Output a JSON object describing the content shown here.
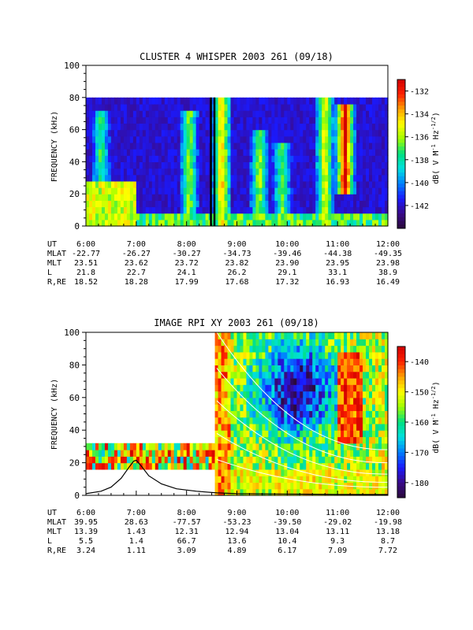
{
  "chart_data": [
    {
      "type": "heatmap",
      "title": "CLUSTER 4 WHISPER 2003 261 (09/18)",
      "ylabel": "FREQUENCY (kHz)",
      "ylim": [
        0,
        100
      ],
      "yticks": [
        "0",
        "20",
        "40",
        "60",
        "80",
        "100"
      ],
      "xlim_hours": [
        6,
        12
      ],
      "xticks": [
        "6:00",
        "7:00",
        "8:00",
        "9:00",
        "10:00",
        "11:00",
        "12:00"
      ],
      "data_max_frequency_khz": 80,
      "colorbar": {
        "label": "dB( V M⁻¹ Hz⁻¹ᐟ²)",
        "label_parts": [
          "dB( V M",
          "-1",
          " Hz",
          "-1/2",
          ")"
        ],
        "range": [
          -144,
          -131
        ],
        "ticks": [
          -132,
          -134,
          -136,
          -138,
          -140,
          -142
        ],
        "tick_labels": [
          "-132",
          "-134",
          "-136",
          "-138",
          "-140",
          "-142"
        ]
      },
      "colormap": [
        "#2a0a3a",
        "#3a0a8a",
        "#1a1aff",
        "#0080ff",
        "#00e0e0",
        "#00e080",
        "#a0ff00",
        "#ffff00",
        "#ffa000",
        "#ff2000",
        "#d00000"
      ],
      "features": [
        {
          "hour": 6.3,
          "f_lo": 0,
          "f_hi": 70,
          "level": 0.45
        },
        {
          "hour": 8.05,
          "f_lo": 0,
          "f_hi": 70,
          "level": 0.55
        },
        {
          "hour": 8.7,
          "f_lo": 0,
          "f_hi": 80,
          "level": 0.7
        },
        {
          "hour": 9.45,
          "f_lo": 0,
          "f_hi": 60,
          "level": 0.55
        },
        {
          "hour": 9.9,
          "f_lo": 0,
          "f_hi": 50,
          "level": 0.5
        },
        {
          "hour": 10.75,
          "f_lo": 0,
          "f_hi": 80,
          "level": 0.65
        },
        {
          "hour": 11.15,
          "f_lo": 20,
          "f_hi": 75,
          "level": 0.95
        }
      ],
      "ephemeris": {
        "rows": [
          {
            "label": "UT",
            "values": [
              "6:00",
              "7:00",
              "8:00",
              "9:00",
              "10:00",
              "11:00",
              "12:00"
            ]
          },
          {
            "label": "MLAT",
            "values": [
              "-22.77",
              "-26.27",
              "-30.27",
              "-34.73",
              "-39.46",
              "-44.38",
              "-49.35"
            ]
          },
          {
            "label": "MLT",
            "values": [
              "23.51",
              "23.62",
              "23.72",
              "23.82",
              "23.90",
              "23.95",
              "23.98"
            ]
          },
          {
            "label": "L",
            "values": [
              "21.8",
              "22.7",
              "24.1",
              "26.2",
              "29.1",
              "33.1",
              "38.9"
            ]
          },
          {
            "label": "R,RE",
            "values": [
              "18.52",
              "18.28",
              "17.99",
              "17.68",
              "17.32",
              "16.93",
              "16.49"
            ]
          }
        ]
      }
    },
    {
      "type": "heatmap",
      "title": "IMAGE RPI XY 2003 261 (09/18)",
      "ylabel": "FREQUENCY (kHz)",
      "ylim": [
        0,
        100
      ],
      "yticks": [
        "0",
        "20",
        "40",
        "60",
        "80",
        "100"
      ],
      "xlim_hours": [
        6,
        12
      ],
      "xticks": [
        "6:00",
        "7:00",
        "8:00",
        "9:00",
        "10:00",
        "11:00",
        "12:00"
      ],
      "early_band_khz": [
        16,
        32
      ],
      "early_band_hours": [
        6,
        8.55
      ],
      "full_band_start_hour": 8.55,
      "colorbar": {
        "label": "dB( V M⁻¹ Hz⁻¹ᐟ²)",
        "label_parts": [
          "dB( V M",
          "-1",
          " Hz",
          "-1/2",
          ")"
        ],
        "range": [
          -185,
          -135
        ],
        "ticks": [
          -140,
          -150,
          -160,
          -170,
          -180
        ],
        "tick_labels": [
          "-140",
          "-150",
          "-160",
          "-170",
          "-180"
        ]
      },
      "colormap": [
        "#2a0a3a",
        "#3a0a8a",
        "#1a1aff",
        "#0080ff",
        "#00e0e0",
        "#00e080",
        "#a0ff00",
        "#ffff00",
        "#ffa000",
        "#ff2000",
        "#d00000"
      ],
      "plasma_frequency_curve": {
        "hours": [
          6.0,
          6.3,
          6.5,
          6.7,
          6.85,
          6.95,
          7.0,
          7.1,
          7.25,
          7.5,
          7.8,
          8.2,
          8.6,
          9.0,
          10.0,
          11.0,
          12.0
        ],
        "khz": [
          1.0,
          2.5,
          5.0,
          10.5,
          17.0,
          21.0,
          21.5,
          18.0,
          12.0,
          7.0,
          4.0,
          2.5,
          1.5,
          1.0,
          0.8,
          0.6,
          0.5
        ]
      },
      "white_curves": [
        {
          "start_hour": 8.6,
          "start_khz": 100,
          "end_hour": 12,
          "end_khz": 28
        },
        {
          "start_hour": 8.6,
          "start_khz": 78,
          "end_hour": 12,
          "end_khz": 20
        },
        {
          "start_hour": 8.6,
          "start_khz": 58,
          "end_hour": 12,
          "end_khz": 13
        },
        {
          "start_hour": 8.6,
          "start_khz": 38,
          "end_hour": 12,
          "end_khz": 8
        },
        {
          "start_hour": 8.6,
          "start_khz": 22,
          "end_hour": 12,
          "end_khz": 5
        }
      ],
      "ephemeris": {
        "rows": [
          {
            "label": "UT",
            "values": [
              "6:00",
              "7:00",
              "8:00",
              "9:00",
              "10:00",
              "11:00",
              "12:00"
            ]
          },
          {
            "label": "MLAT",
            "values": [
              "39.95",
              "28.63",
              "-77.57",
              "-53.23",
              "-39.50",
              "-29.02",
              "-19.98"
            ]
          },
          {
            "label": "MLT",
            "values": [
              "13.39",
              "1.43",
              "12.31",
              "12.94",
              "13.04",
              "13.11",
              "13.18"
            ]
          },
          {
            "label": "L",
            "values": [
              "5.5",
              "1.4",
              "66.7",
              "13.6",
              "10.4",
              "9.3",
              "8.7"
            ]
          },
          {
            "label": "R,RE",
            "values": [
              "3.24",
              "1.11",
              "3.09",
              "4.89",
              "6.17",
              "7.09",
              "7.72"
            ]
          }
        ]
      }
    }
  ]
}
